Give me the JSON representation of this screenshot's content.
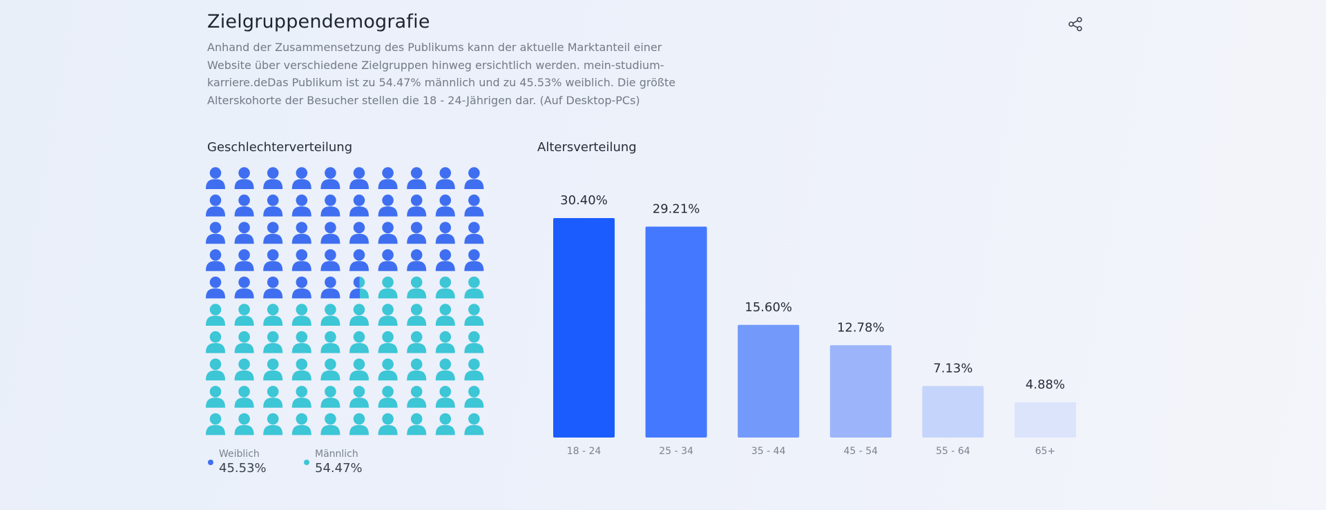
{
  "section": {
    "title": "Zielgruppendemografie",
    "description": "Anhand der Zusammensetzung des Publikums kann der aktuelle Marktanteil einer Website über verschiedene Zielgruppen hinweg ersichtlich werden. mein-studium-karriere.deDas Publikum ist zu 54.47% männlich und zu 45.53% weiblich. Die größte Alterskohorte der Besucher stellen die 18 - 24-Jährigen dar. (Auf Desktop-PCs)",
    "share_icon": "share-icon"
  },
  "gender": {
    "title": "Geschlechterverteilung",
    "icon": "person-icon",
    "colors": {
      "female": "#3f6ff0",
      "male": "#3cc6d6"
    },
    "legend": [
      {
        "key": "female",
        "label": "Weiblich",
        "value": "45.53%"
      },
      {
        "key": "male",
        "label": "Männlich",
        "value": "54.47%"
      }
    ]
  },
  "chart_data": [
    {
      "type": "pictograph",
      "title": "Geschlechterverteilung",
      "categories": [
        "Weiblich",
        "Männlich"
      ],
      "values": [
        45.53,
        54.47
      ],
      "colors": [
        "#3f6ff0",
        "#3cc6d6"
      ]
    },
    {
      "type": "bar",
      "title": "Altersverteilung",
      "categories": [
        "18 - 24",
        "25 - 34",
        "35 - 44",
        "45 - 54",
        "55 - 64",
        "65+"
      ],
      "values": [
        30.4,
        29.21,
        15.6,
        12.78,
        7.13,
        4.88
      ],
      "data_labels": [
        "30.40%",
        "29.21%",
        "15.60%",
        "12.78%",
        "7.13%",
        "4.88%"
      ],
      "colors": [
        "#1b5cff",
        "#4479ff",
        "#7399fb",
        "#9cb5fa",
        "#c5d4fa",
        "#dbe4fb"
      ],
      "ylim": [
        0,
        30.4
      ],
      "grid": false,
      "legend": false
    }
  ]
}
